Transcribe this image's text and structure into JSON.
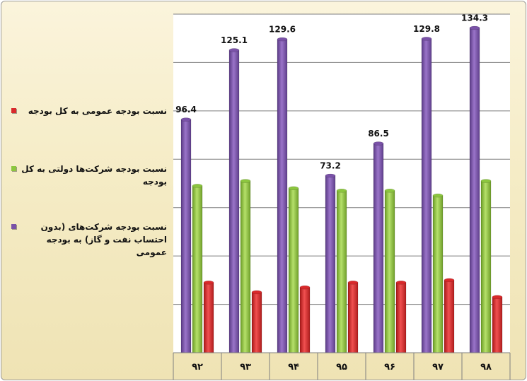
{
  "chart_data": {
    "type": "bar",
    "categories": [
      "۹۲",
      "۹۳",
      "۹۴",
      "۹۵",
      "۹۶",
      "۹۷",
      "۹۸"
    ],
    "series": [
      {
        "name": "نسبت بودجه شرکت‌های (بدون احتساب نفت و گاز) به بودجه عمومی",
        "color": "#7a52a8",
        "values": [
          96.4,
          125.1,
          129.6,
          73.2,
          86.5,
          129.8,
          134.3
        ],
        "labels": [
          "96.4",
          "125.1",
          "129.6",
          "73.2",
          "86.5",
          "129.8",
          "134.3"
        ]
      },
      {
        "name": "نسبت بودجه شرکت‌ها دولتی به کل بودجه",
        "color": "#8cc63f",
        "values": [
          69,
          71,
          68,
          67,
          67,
          65,
          71
        ]
      },
      {
        "name": "نسبت بودجه عمومی به کل بودجه",
        "color": "#d9292b",
        "values": [
          29,
          25,
          27,
          29,
          29,
          30,
          23
        ]
      }
    ],
    "ylim": [
      0,
      140
    ],
    "grid": true,
    "legend": "left"
  }
}
